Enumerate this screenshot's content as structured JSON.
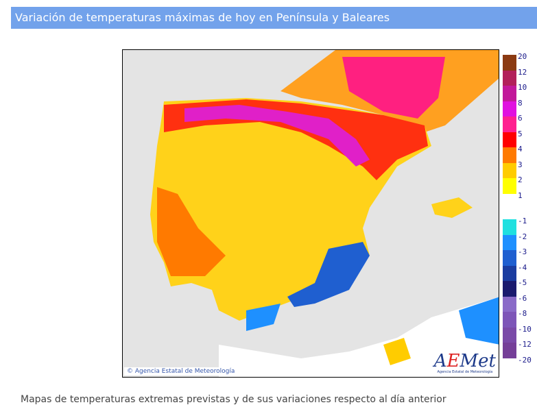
{
  "header": {
    "title": "Variación de temperaturas máximas de hoy en Península y Baleares"
  },
  "map": {
    "copyright": "© Agencia Estatal de Meteorología",
    "logo_text": "AEMet",
    "logo_subtext": "Agencia Estatal de Meteorología"
  },
  "legend": {
    "positive": [
      {
        "label": "20",
        "color": "#8b3a12"
      },
      {
        "label": "12",
        "color": "#b2205a"
      },
      {
        "label": "10",
        "color": "#c2189a"
      },
      {
        "label": "8",
        "color": "#e010e0"
      },
      {
        "label": "6",
        "color": "#ff2090"
      },
      {
        "label": "5",
        "color": "#ff0000"
      },
      {
        "label": "4",
        "color": "#ff7a00"
      },
      {
        "label": "3",
        "color": "#ffcc00"
      },
      {
        "label": "2",
        "color": "#ffff00"
      },
      {
        "label": "1",
        "color": "#ffffff"
      }
    ],
    "negative": [
      {
        "label": "-1",
        "color": "#20e0e0"
      },
      {
        "label": "-2",
        "color": "#1e90ff"
      },
      {
        "label": "-3",
        "color": "#1f5fd0"
      },
      {
        "label": "-4",
        "color": "#1a3ca0"
      },
      {
        "label": "-5",
        "color": "#1a1a6e"
      },
      {
        "label": "-6",
        "color": "#8a6ac8"
      },
      {
        "label": "-8",
        "color": "#7d55b8"
      },
      {
        "label": "-10",
        "color": "#7a4aa8"
      },
      {
        "label": "-12",
        "color": "#753f98"
      },
      {
        "label": "-20",
        "color": "#ffffff"
      }
    ]
  },
  "caption": "Mapas de temperaturas extremas previstas y de sus variaciones respecto al día anterior"
}
